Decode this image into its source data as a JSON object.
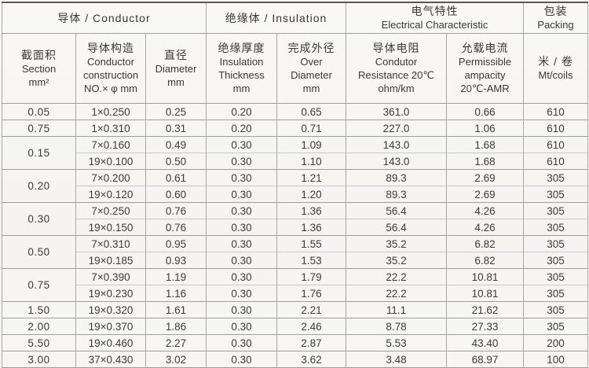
{
  "title": "Cable specification table",
  "colors": {
    "page_background": "#f7f6f3",
    "text": "#3b3b3b",
    "border_strong": "#9e9e9e",
    "border_light": "#c8c8c8",
    "border_top": "#585858"
  },
  "header": {
    "groups": [
      {
        "lines": [
          "导体 / Conductor"
        ],
        "colspan": 3
      },
      {
        "lines": [
          "绝缘体 / Insulation"
        ],
        "colspan": 2
      },
      {
        "lines": [
          "电气特性",
          "Electrical Characteristic"
        ],
        "colspan": 2
      },
      {
        "lines": [
          "包装",
          "Packing"
        ],
        "colspan": 1
      }
    ],
    "columns": [
      {
        "lines": [
          "截面积",
          "Section",
          "mm²"
        ]
      },
      {
        "lines": [
          "导体构造",
          "Conductor",
          "construction",
          "NO.× φ mm"
        ]
      },
      {
        "lines": [
          "直径",
          "Diameter",
          "mm"
        ]
      },
      {
        "lines": [
          "绝缘厚度",
          "Insulation",
          "Thickness",
          "mm"
        ]
      },
      {
        "lines": [
          "完成外径",
          "Over",
          "Diameter",
          "mm"
        ]
      },
      {
        "lines": [
          "导体电阻",
          "Condutor",
          "Resistance 20℃",
          "ohm/km"
        ]
      },
      {
        "lines": [
          "允载电流",
          "Permissible",
          "ampacity",
          "20℃-AMR"
        ]
      },
      {
        "lines": [
          "米 / 卷",
          "Mt/coils"
        ]
      }
    ]
  },
  "table": {
    "groups": [
      {
        "section": "0.05",
        "rows": [
          [
            "1×0.250",
            "0.25",
            "0.20",
            "0.65",
            "361.0",
            "0.66",
            "610"
          ]
        ]
      },
      {
        "section": "0.75",
        "rows": [
          [
            "1×0.310",
            "0.31",
            "0.20",
            "0.71",
            "227.0",
            "1.06",
            "610"
          ]
        ]
      },
      {
        "section": "0.15",
        "rows": [
          [
            "7×0.160",
            "0.49",
            "0.30",
            "1.09",
            "143.0",
            "1.68",
            "610"
          ],
          [
            "19×0.100",
            "0.50",
            "0.30",
            "1.10",
            "143.0",
            "1.68",
            "610"
          ]
        ]
      },
      {
        "section": "0.20",
        "rows": [
          [
            "7×0.200",
            "0.61",
            "0.30",
            "1.21",
            "89.3",
            "2.69",
            "305"
          ],
          [
            "19×0.120",
            "0.60",
            "0.30",
            "1.20",
            "89.3",
            "2.69",
            "305"
          ]
        ]
      },
      {
        "section": "0.30",
        "rows": [
          [
            "7×0.250",
            "0.76",
            "0.30",
            "1.36",
            "56.4",
            "4.26",
            "305"
          ],
          [
            "19×0.150",
            "0.76",
            "0.30",
            "1.36",
            "56.4",
            "4.26",
            "305"
          ]
        ]
      },
      {
        "section": "0.50",
        "rows": [
          [
            "7×0.310",
            "0.95",
            "0.30",
            "1.55",
            "35.2",
            "6.82",
            "305"
          ],
          [
            "19×0.185",
            "0.93",
            "0.30",
            "1.53",
            "35.2",
            "6.82",
            "305"
          ]
        ]
      },
      {
        "section": "0.75",
        "rows": [
          [
            "7×0.390",
            "1.19",
            "0.30",
            "1.79",
            "22.2",
            "10.81",
            "305"
          ],
          [
            "19×0.230",
            "1.16",
            "0.30",
            "1.76",
            "22.2",
            "10.81",
            "305"
          ]
        ]
      },
      {
        "section": "1.50",
        "rows": [
          [
            "19×0.320",
            "1.61",
            "0.30",
            "2.21",
            "11.1",
            "21.62",
            "305"
          ]
        ]
      },
      {
        "section": "2.00",
        "rows": [
          [
            "19×0.370",
            "1.86",
            "0.30",
            "2.46",
            "8.78",
            "27.33",
            "305"
          ]
        ]
      },
      {
        "section": "5.50",
        "rows": [
          [
            "19×0.460",
            "2.27",
            "0.30",
            "2.87",
            "5.53",
            "43.40",
            "200"
          ]
        ]
      },
      {
        "section": "3.00",
        "rows": [
          [
            "37×0.430",
            "3.02",
            "0.30",
            "3.62",
            "3.48",
            "68.97",
            "100"
          ]
        ]
      }
    ]
  },
  "chart_data": {
    "type": "table",
    "columns": [
      "Section mm²",
      "Conductor construction NO.× φ mm",
      "Diameter mm",
      "Insulation Thickness mm",
      "Over Diameter mm",
      "Condutor Resistance 20℃ ohm/km",
      "Permissible ampacity 20℃-AMR",
      "Mt/coils"
    ],
    "rows": [
      [
        "0.05",
        "1×0.250",
        "0.25",
        "0.20",
        "0.65",
        "361.0",
        "0.66",
        "610"
      ],
      [
        "0.75",
        "1×0.310",
        "0.31",
        "0.20",
        "0.71",
        "227.0",
        "1.06",
        "610"
      ],
      [
        "0.15",
        "7×0.160",
        "0.49",
        "0.30",
        "1.09",
        "143.0",
        "1.68",
        "610"
      ],
      [
        "0.15",
        "19×0.100",
        "0.50",
        "0.30",
        "1.10",
        "143.0",
        "1.68",
        "610"
      ],
      [
        "0.20",
        "7×0.200",
        "0.61",
        "0.30",
        "1.21",
        "89.3",
        "2.69",
        "305"
      ],
      [
        "0.20",
        "19×0.120",
        "0.60",
        "0.30",
        "1.20",
        "89.3",
        "2.69",
        "305"
      ],
      [
        "0.30",
        "7×0.250",
        "0.76",
        "0.30",
        "1.36",
        "56.4",
        "4.26",
        "305"
      ],
      [
        "0.30",
        "19×0.150",
        "0.76",
        "0.30",
        "1.36",
        "56.4",
        "4.26",
        "305"
      ],
      [
        "0.50",
        "7×0.310",
        "0.95",
        "0.30",
        "1.55",
        "35.2",
        "6.82",
        "305"
      ],
      [
        "0.50",
        "19×0.185",
        "0.93",
        "0.30",
        "1.53",
        "35.2",
        "6.82",
        "305"
      ],
      [
        "0.75",
        "7×0.390",
        "1.19",
        "0.30",
        "1.79",
        "22.2",
        "10.81",
        "305"
      ],
      [
        "0.75",
        "19×0.230",
        "1.16",
        "0.30",
        "1.76",
        "22.2",
        "10.81",
        "305"
      ],
      [
        "1.50",
        "19×0.320",
        "1.61",
        "0.30",
        "2.21",
        "11.1",
        "21.62",
        "305"
      ],
      [
        "2.00",
        "19×0.370",
        "1.86",
        "0.30",
        "2.46",
        "8.78",
        "27.33",
        "305"
      ],
      [
        "5.50",
        "19×0.460",
        "2.27",
        "0.30",
        "2.87",
        "5.53",
        "43.40",
        "200"
      ],
      [
        "3.00",
        "37×0.430",
        "3.02",
        "0.30",
        "3.62",
        "3.48",
        "68.97",
        "100"
      ]
    ]
  }
}
